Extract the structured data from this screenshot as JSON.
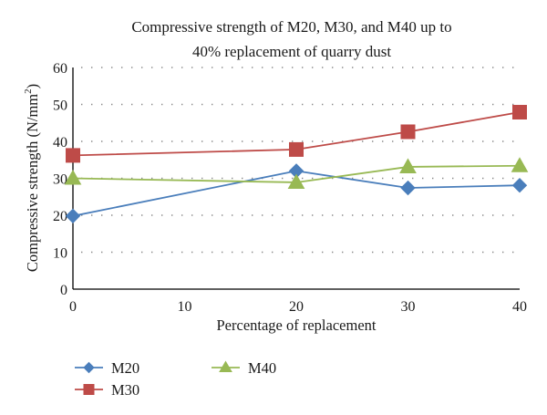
{
  "chart_data": {
    "type": "line",
    "title_lines": [
      "Compressive strength of M20, M30, and M40 up to",
      "40% replacement of quarry dust"
    ],
    "xlabel": "Percentage of replacement",
    "ylabel": "Compressive strength (N/mm",
    "ylabel_sup": "2",
    "ylabel_close": ")",
    "x": [
      0,
      20,
      30,
      40
    ],
    "xlim": [
      0,
      40
    ],
    "ylim": [
      0,
      60
    ],
    "xticks": [
      0,
      10,
      20,
      30,
      40
    ],
    "yticks": [
      0,
      10,
      20,
      30,
      40,
      50,
      60
    ],
    "xtick_labels": [
      "0",
      "10",
      "20",
      "30",
      "40"
    ],
    "ytick_labels": [
      "0",
      "10",
      "20",
      "30",
      "40",
      "50",
      "60"
    ],
    "grid": "horizontal-dotted",
    "legend_position": "bottom-left",
    "series": [
      {
        "name": "M20",
        "marker": "diamond",
        "color": "#4a7ebb",
        "values": [
          19.8,
          32.0,
          27.4,
          28.1
        ]
      },
      {
        "name": "M30",
        "marker": "square",
        "color": "#be4b48",
        "values": [
          36.2,
          37.8,
          42.6,
          47.9
        ]
      },
      {
        "name": "M40",
        "marker": "triangle",
        "color": "#98b954",
        "values": [
          30.0,
          28.9,
          33.1,
          33.4
        ]
      }
    ]
  }
}
